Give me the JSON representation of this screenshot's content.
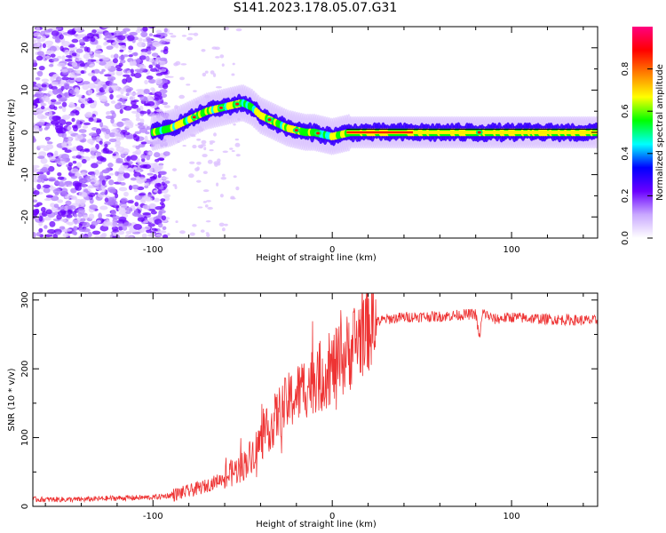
{
  "title": "S141.2023.178.05.07.G31",
  "chart_data": [
    {
      "type": "heatmap",
      "xlabel": "Height of straight line (km)",
      "ylabel": "Frequency (Hz)",
      "xlim": [
        -167,
        148
      ],
      "ylim": [
        -25,
        25
      ],
      "xticks": [
        -100,
        0,
        100
      ],
      "yticks": [
        -20,
        -10,
        0,
        10,
        20
      ],
      "colorbar": {
        "label": "Normalized spectral amplitude",
        "range": [
          0,
          1
        ],
        "ticks": [
          "0.0",
          "0.2",
          "0.4",
          "0.6",
          "0.8"
        ],
        "colors": [
          "#ffffff",
          "#c9a8ff",
          "#6a00ff",
          "#0000ff",
          "#00ffff",
          "#00ff00",
          "#ffff00",
          "#ff8000",
          "#ff0000",
          "#ff0080"
        ]
      },
      "ridge": {
        "x": [
          -167,
          -140,
          -110,
          -100,
          -90,
          -80,
          -70,
          -60,
          -50,
          -45,
          -40,
          -35,
          -30,
          -25,
          -20,
          -15,
          -10,
          -5,
          0,
          5,
          10,
          30,
          60,
          80,
          100,
          148
        ],
        "y": [
          0,
          0,
          0,
          0,
          1,
          3,
          5,
          6,
          7,
          6,
          4,
          3,
          2,
          1,
          0.5,
          0,
          0,
          -0.5,
          -1,
          -0.5,
          0,
          0,
          0,
          0,
          0,
          0
        ]
      }
    },
    {
      "type": "line",
      "xlabel": "Height of straight line (km)",
      "ylabel": "SNR (10 * v/v)",
      "xlim": [
        -167,
        148
      ],
      "ylim": [
        0,
        310
      ],
      "xticks": [
        -100,
        0,
        100
      ],
      "yticks": [
        0,
        100,
        200,
        300
      ],
      "color": "#ee3333",
      "series": [
        {
          "x": [
            -167,
            -140,
            -120,
            -100,
            -90,
            -80,
            -70,
            -60,
            -50,
            -45,
            -40,
            -35,
            -30,
            -25,
            -20,
            -15,
            -10,
            -5,
            0,
            5,
            10,
            15,
            20,
            25,
            30,
            40,
            50,
            60,
            70,
            80,
            82,
            84,
            90,
            100,
            120,
            148
          ],
          "y": [
            10,
            10,
            12,
            13,
            16,
            22,
            30,
            42,
            58,
            75,
            95,
            115,
            135,
            150,
            162,
            175,
            185,
            192,
            200,
            212,
            228,
            248,
            262,
            268,
            272,
            275,
            276,
            276,
            278,
            280,
            245,
            282,
            272,
            275,
            272,
            270
          ]
        }
      ]
    }
  ]
}
